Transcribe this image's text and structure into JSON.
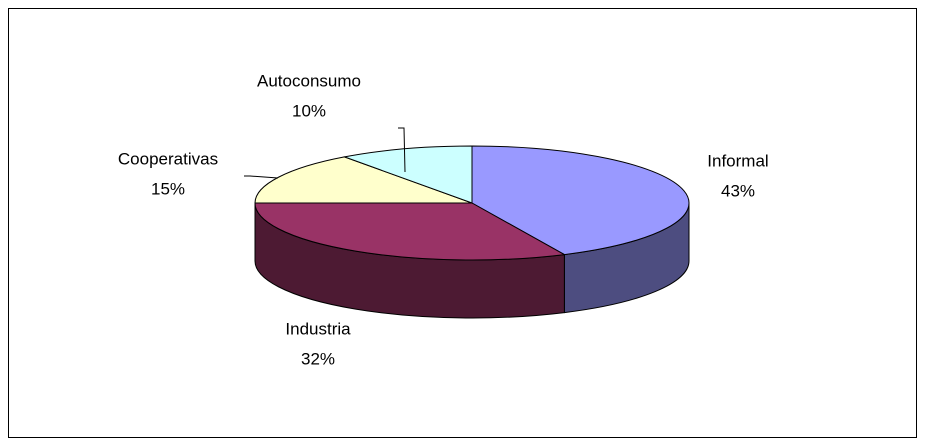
{
  "chart_data": {
    "type": "pie",
    "categories": [
      "Informal",
      "Industria",
      "Cooperativas",
      "Autoconsumo"
    ],
    "values": [
      43,
      32,
      15,
      10
    ],
    "value_labels": [
      "43%",
      "32%",
      "15%",
      "10%"
    ],
    "colors": [
      "#9999ff",
      "#993366",
      "#ffffcc",
      "#ccffff"
    ]
  }
}
